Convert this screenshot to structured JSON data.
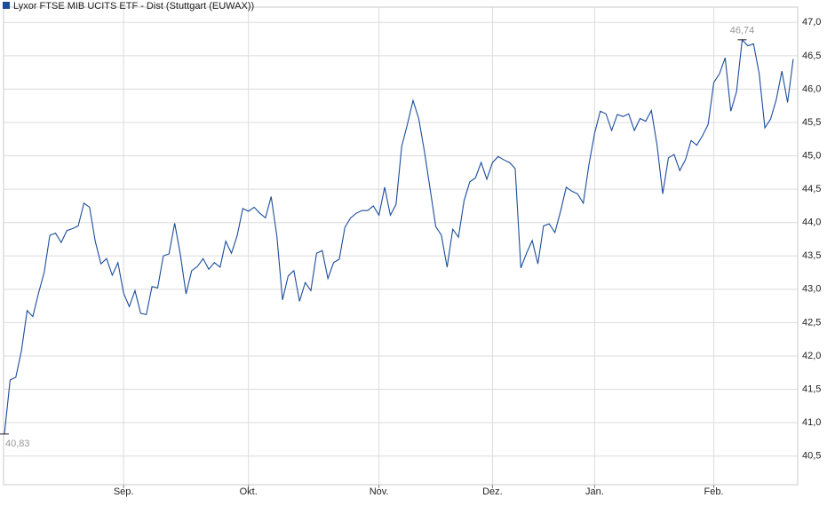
{
  "chart_data": {
    "type": "line",
    "categories": [
      null,
      null,
      null,
      null,
      null,
      null,
      null,
      null,
      null,
      null,
      null,
      null,
      null,
      null,
      null,
      null,
      null,
      null,
      null,
      null,
      null,
      "Sep.",
      null,
      null,
      null,
      null,
      null,
      null,
      null,
      null,
      null,
      null,
      null,
      null,
      null,
      null,
      null,
      null,
      null,
      null,
      null,
      null,
      null,
      "Okt.",
      null,
      null,
      null,
      null,
      null,
      null,
      null,
      null,
      null,
      null,
      null,
      null,
      null,
      null,
      null,
      null,
      null,
      null,
      null,
      null,
      null,
      null,
      "Nov.",
      null,
      null,
      null,
      null,
      null,
      null,
      null,
      null,
      null,
      null,
      null,
      null,
      null,
      null,
      null,
      null,
      null,
      null,
      null,
      "Dez.",
      null,
      null,
      null,
      null,
      null,
      null,
      null,
      null,
      null,
      null,
      null,
      null,
      null,
      null,
      null,
      null,
      null,
      "Jan.",
      null,
      null,
      null,
      null,
      null,
      null,
      null,
      null,
      null,
      null,
      null,
      null,
      null,
      null,
      null,
      null,
      null,
      null,
      null,
      null,
      "Feb.",
      null,
      null,
      null,
      null,
      null,
      null,
      null,
      null,
      null,
      null,
      null,
      null,
      null,
      null
    ],
    "series": [
      {
        "name": "Lyxor FTSE MIB UCITS ETF - Dist (Stuttgart (EUWAX))",
        "color": "#1c4d9c",
        "values": [
          40.83,
          41.64,
          41.68,
          42.08,
          42.68,
          42.59,
          42.94,
          43.25,
          43.81,
          43.84,
          43.7,
          43.88,
          43.91,
          43.95,
          44.29,
          44.23,
          43.72,
          43.38,
          43.46,
          43.21,
          43.4,
          42.94,
          42.74,
          42.98,
          42.64,
          42.62,
          43.04,
          43.02,
          43.5,
          43.53,
          43.99,
          43.52,
          42.93,
          43.28,
          43.34,
          43.46,
          43.3,
          43.4,
          43.33,
          43.72,
          43.54,
          43.8,
          44.21,
          44.17,
          44.23,
          44.14,
          44.07,
          44.39,
          43.8,
          42.84,
          43.2,
          43.28,
          42.82,
          43.1,
          42.98,
          43.54,
          43.58,
          43.16,
          43.4,
          43.45,
          43.93,
          44.07,
          44.14,
          44.18,
          44.18,
          44.25,
          44.11,
          44.53,
          44.11,
          44.27,
          45.14,
          45.47,
          45.83,
          45.56,
          45.07,
          44.51,
          43.94,
          43.81,
          43.33,
          43.9,
          43.78,
          44.33,
          44.61,
          44.67,
          44.9,
          44.65,
          44.9,
          44.99,
          44.94,
          44.9,
          44.81,
          43.32,
          43.54,
          43.73,
          43.38,
          43.95,
          43.98,
          43.85,
          44.17,
          44.53,
          44.47,
          44.43,
          44.29,
          44.87,
          45.34,
          45.67,
          45.63,
          45.38,
          45.62,
          45.59,
          45.63,
          45.38,
          45.56,
          45.52,
          45.68,
          45.16,
          44.43,
          44.97,
          45.02,
          44.78,
          44.94,
          45.23,
          45.16,
          45.3,
          45.47,
          46.1,
          46.23,
          46.47,
          45.67,
          45.96,
          46.74,
          46.65,
          46.68,
          46.23,
          45.42,
          45.55,
          45.84,
          46.27,
          45.8,
          46.45
        ],
        "value_labels": [
          "40,83",
          null,
          null,
          null,
          null,
          null,
          null,
          null,
          null,
          null,
          null,
          null,
          null,
          null,
          null,
          null,
          null,
          null,
          null,
          null,
          null,
          null,
          null,
          null,
          null,
          null,
          null,
          null,
          null,
          null,
          null,
          null,
          null,
          null,
          null,
          null,
          null,
          null,
          null,
          null,
          null,
          null,
          null,
          null,
          null,
          null,
          null,
          null,
          null,
          null,
          null,
          null,
          null,
          null,
          null,
          null,
          null,
          null,
          null,
          null,
          null,
          null,
          null,
          null,
          null,
          null,
          null,
          null,
          null,
          null,
          null,
          null,
          null,
          null,
          null,
          null,
          null,
          null,
          null,
          null,
          null,
          null,
          null,
          null,
          null,
          null,
          null,
          null,
          null,
          null,
          null,
          null,
          null,
          null,
          null,
          null,
          null,
          null,
          null,
          null,
          null,
          null,
          null,
          null,
          null,
          null,
          null,
          null,
          null,
          null,
          null,
          null,
          null,
          null,
          null,
          null,
          null,
          null,
          null,
          null,
          null,
          null,
          null,
          null,
          null,
          null,
          null,
          null,
          null,
          null,
          "46,74",
          null,
          null,
          null,
          null,
          null,
          null,
          null,
          null,
          null
        ]
      }
    ],
    "ylim": [
      40.07,
      47.23
    ],
    "yticks": [
      {
        "value": 40.5,
        "label": "40,5"
      },
      {
        "value": 41,
        "label": "41,0"
      },
      {
        "value": 41.5,
        "label": "41,5"
      },
      {
        "value": 42,
        "label": "42,0"
      },
      {
        "value": 42.5,
        "label": "42,5"
      },
      {
        "value": 43,
        "label": "43,0"
      },
      {
        "value": 43.5,
        "label": "43,5"
      },
      {
        "value": 44,
        "label": "44,0"
      },
      {
        "value": 44.5,
        "label": "44,5"
      },
      {
        "value": 45,
        "label": "45,0"
      },
      {
        "value": 45.5,
        "label": "45,5"
      },
      {
        "value": 46,
        "label": "46,0"
      },
      {
        "value": 46.5,
        "label": "46,5"
      },
      {
        "value": 47,
        "label": "47,0"
      }
    ],
    "grid": true
  }
}
